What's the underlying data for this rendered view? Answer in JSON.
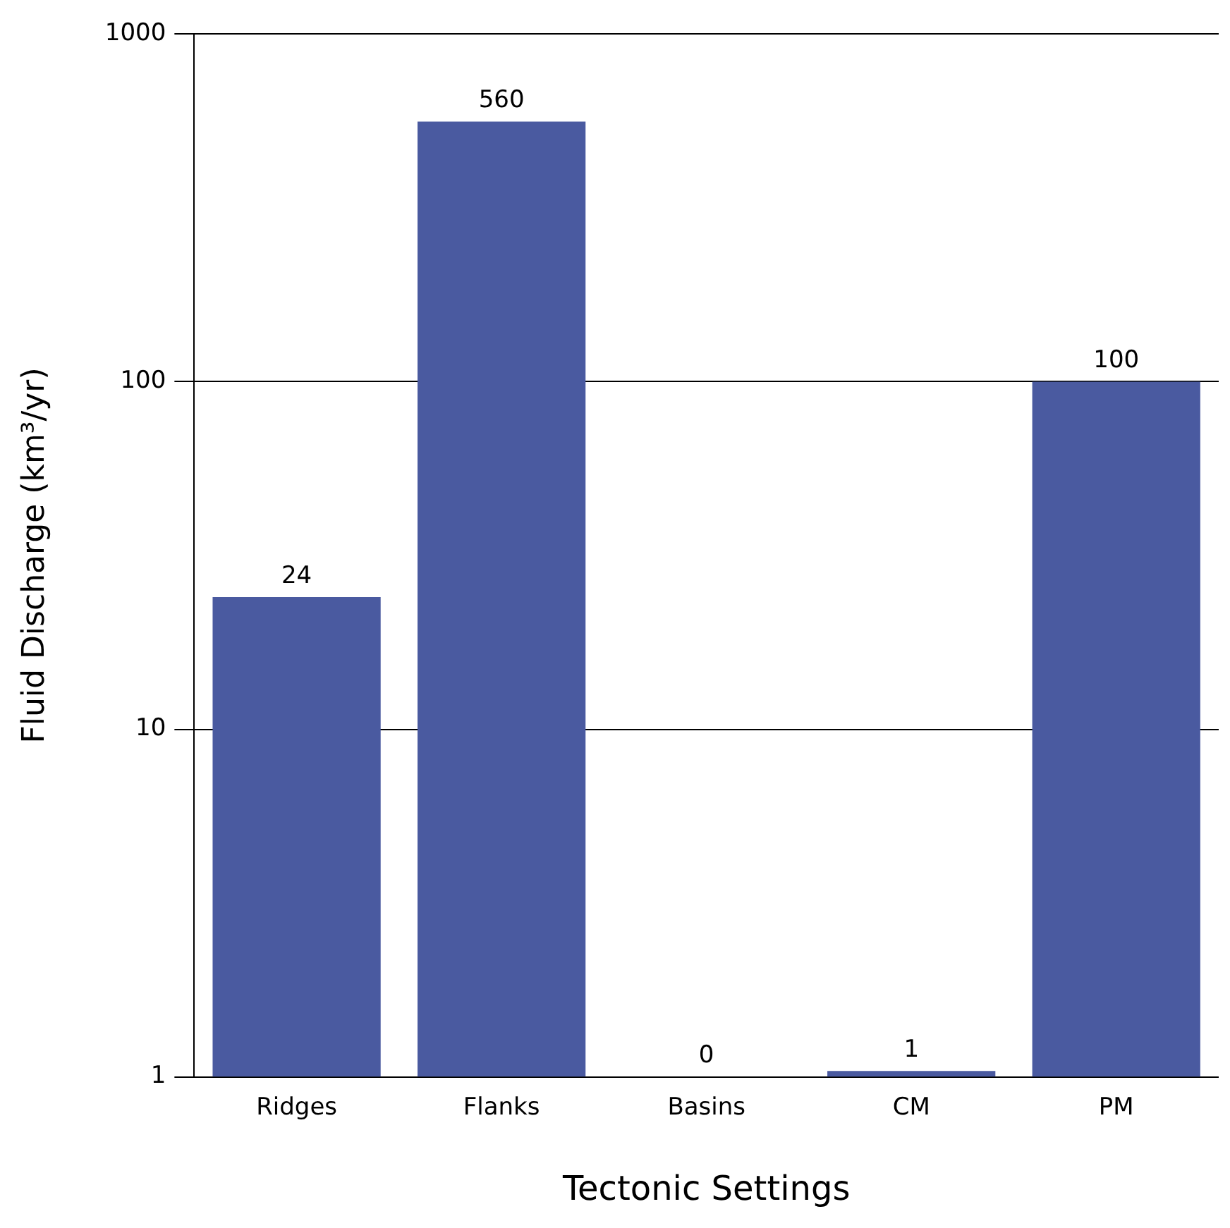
{
  "chart_data": {
    "type": "bar",
    "xlabel": "Tectonic Settings",
    "ylabel": "Fluid Discharge (km³/yr)",
    "categories": [
      "Ridges",
      "Flanks",
      "Basins",
      "CM",
      "PM"
    ],
    "values": [
      24,
      560,
      null,
      1.04,
      100
    ],
    "value_labels": [
      "24",
      "560",
      "0",
      "1",
      "100"
    ],
    "color": "#4a5aa0",
    "log": true,
    "ylim": [
      1,
      1000
    ],
    "yticks": [
      1,
      10,
      100,
      1000
    ],
    "grid": "y",
    "legend": false
  }
}
